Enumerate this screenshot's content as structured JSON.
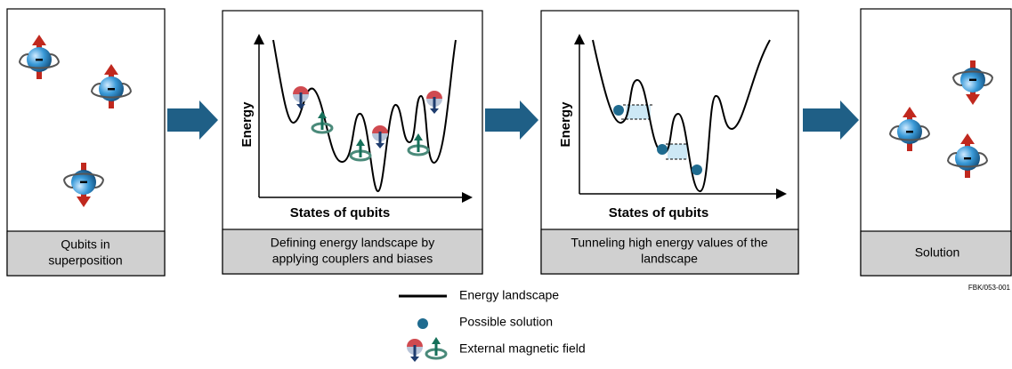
{
  "panels": [
    {
      "caption": [
        "Qubits in",
        "superposition"
      ]
    },
    {
      "caption": [
        "Defining energy landscape by",
        "applying couplers and biases"
      ],
      "y_axis_label": "Energy",
      "x_axis_label": "States of qubits"
    },
    {
      "caption": [
        "Tunneling high energy values of the",
        "landscape"
      ],
      "y_axis_label": "Energy",
      "x_axis_label": "States of qubits"
    },
    {
      "caption": [
        "Solution"
      ]
    }
  ],
  "legend": [
    {
      "label": "Energy landscape"
    },
    {
      "label": "Possible solution"
    },
    {
      "label": "External magnetic field"
    }
  ],
  "figure_id": "FBK/053-001"
}
